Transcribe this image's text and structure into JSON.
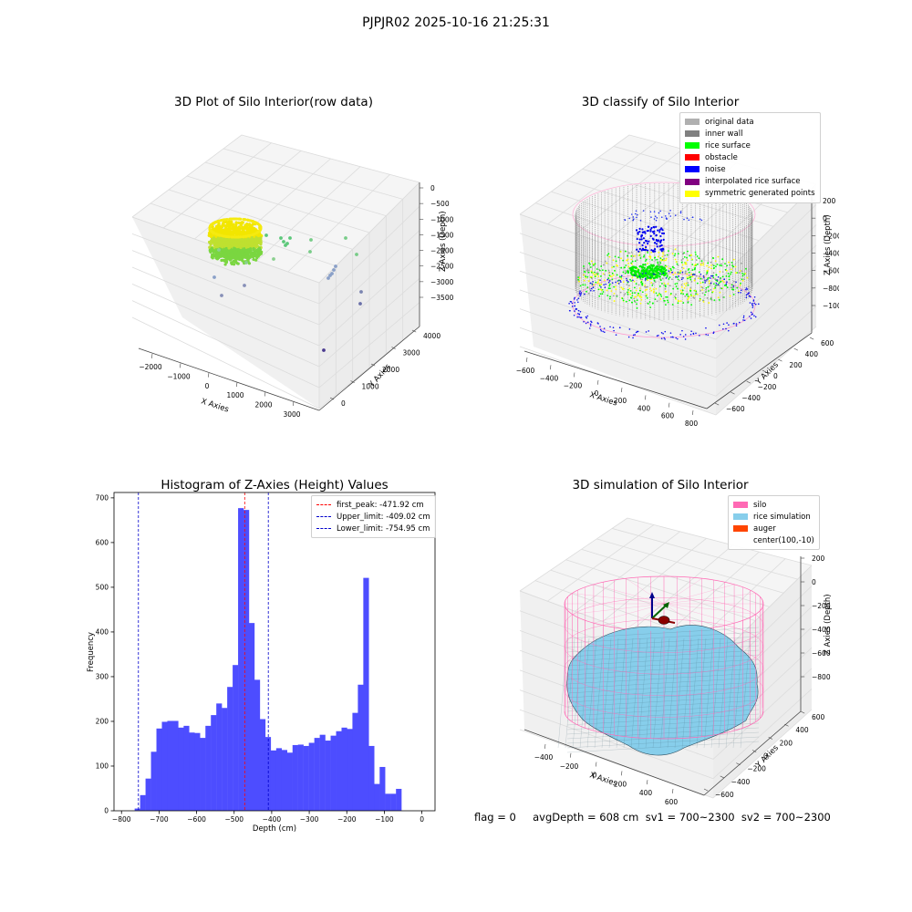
{
  "figure": {
    "suptitle": "PJPJR02 2025-10-16 21:25:31",
    "status_line": "flag = 0     avgDepth = 608 cm  sv1 = 700~2300  sv2 = 700~2300"
  },
  "colors": {
    "hist_bar": "#4d4dff",
    "first_peak_line": "#ff0000",
    "limit_line": "#0000cc",
    "silo": "#ff69b4",
    "rice_simulation": "#87ceeb",
    "auger": "#ff4500",
    "noise": "#0000ee",
    "rice_surface": "#00ff00",
    "inner_wall": "#808080"
  },
  "panels": {
    "raw": {
      "title": "3D Plot of Silo Interior(row data)",
      "xlabel": "X Axies",
      "ylabel": "Y Axies",
      "zlabel": "Z Axies (Depth)",
      "x_ticks": [
        "−2000",
        "−1000",
        "0",
        "1000",
        "2000",
        "3000"
      ],
      "y_ticks": [
        "0",
        "1000",
        "2000",
        "3000",
        "4000"
      ],
      "z_ticks": [
        "0",
        "−500",
        "−1000",
        "−1500",
        "−2000",
        "−2500",
        "−3000",
        "−3500"
      ]
    },
    "classify": {
      "title": "3D classify of Silo Interior",
      "xlabel": "X Axies",
      "ylabel": "Y Axies",
      "zlabel": "Z Axies (Depth)",
      "x_ticks": [
        "−600",
        "−400",
        "−200",
        "0",
        "200",
        "400",
        "600",
        "800"
      ],
      "y_ticks": [
        "−600",
        "−400",
        "−200",
        "0",
        "200",
        "400",
        "600"
      ],
      "z_ticks": [
        "200",
        "0",
        "−200",
        "−400",
        "−600",
        "−800",
        "−1000"
      ],
      "legend": [
        {
          "label": "original data",
          "color": "#b0b0b0"
        },
        {
          "label": "inner wall",
          "color": "#808080"
        },
        {
          "label": "rice surface",
          "color": "#00ff00"
        },
        {
          "label": "obstacle",
          "color": "#ff0000"
        },
        {
          "label": "noise",
          "color": "#0000ff"
        },
        {
          "label": "interpolated rice surface",
          "color": "#800080"
        },
        {
          "label": "symmetric generated points",
          "color": "#ffff00"
        }
      ]
    },
    "simulation": {
      "title": "3D simulation of Silo Interior",
      "xlabel": "X Axies",
      "ylabel": "Y Axies",
      "zlabel": "Z Axies (Depth)",
      "x_ticks": [
        "−400",
        "−200",
        "0",
        "200",
        "400",
        "600"
      ],
      "y_ticks": [
        "−600",
        "−400",
        "−200",
        "0",
        "200",
        "400",
        "600"
      ],
      "z_ticks": [
        "200",
        "0",
        "−200",
        "−400",
        "−600",
        "−800"
      ],
      "legend": [
        {
          "label": "silo",
          "color": "#ff69b4"
        },
        {
          "label": "rice simulation",
          "color": "#87ceeb"
        },
        {
          "label": "auger",
          "color": "#ff4500"
        },
        {
          "label": "center(100,-10)",
          "color": ""
        }
      ]
    }
  },
  "chart_data": {
    "type": "bar",
    "title": "Histogram of Z-Axies (Height) Values",
    "xlabel": "Depth (cm)",
    "ylabel": "Frequency",
    "xlim": [
      -820,
      35
    ],
    "ylim": [
      0,
      712
    ],
    "bin_start": -765,
    "bin_width": 14.5,
    "values": [
      5,
      35,
      72,
      132,
      184,
      199,
      201,
      201,
      186,
      190,
      175,
      174,
      163,
      190,
      214,
      240,
      230,
      277,
      326,
      677,
      673,
      420,
      293,
      205,
      165,
      135,
      140,
      136,
      130,
      147,
      148,
      145,
      152,
      163,
      170,
      157,
      168,
      178,
      186,
      183,
      219,
      282,
      521,
      145,
      60,
      98,
      38,
      38,
      49
    ],
    "x_ticks": [
      -800,
      -700,
      -600,
      -500,
      -400,
      -300,
      -200,
      -100,
      0
    ],
    "y_ticks": [
      0,
      100,
      200,
      300,
      400,
      500,
      600,
      700
    ],
    "lines": [
      {
        "name": "first_peak: -471.92 cm",
        "x": -471.92,
        "color": "#ff0000"
      },
      {
        "name": "Upper_limit: -409.02 cm",
        "x": -409.02,
        "color": "#0000cc"
      },
      {
        "name": "Lower_limit: -754.95 cm",
        "x": -754.95,
        "color": "#0000cc"
      }
    ],
    "legend_position": "upper right"
  }
}
